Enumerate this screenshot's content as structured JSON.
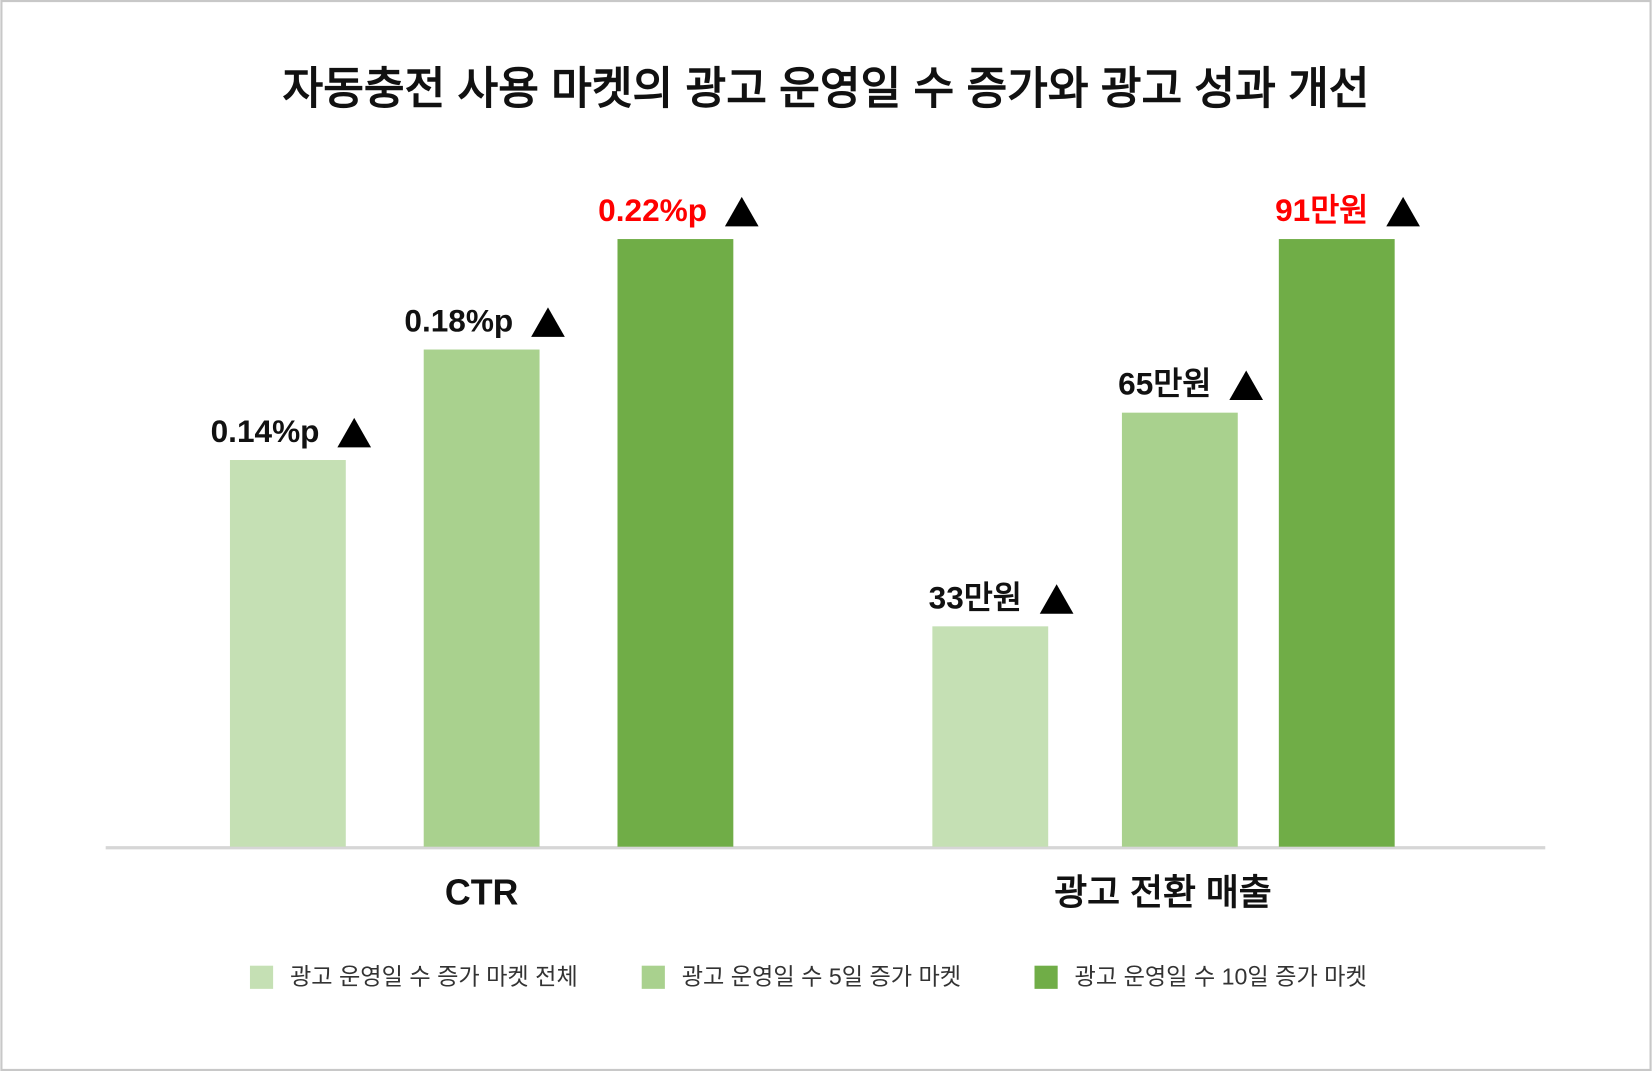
{
  "chart_data": {
    "type": "bar",
    "title": "자동충전 사용 마켓의 광고 운영일 수 증가와 광고 성과 개선",
    "categories": [
      "CTR",
      "광고 전환 매출"
    ],
    "series": [
      {
        "name": "광고 운영일 수 증가 마켓 전체",
        "color": "#c5e0b4",
        "label_color": "#111111",
        "values": [
          0.14,
          33
        ],
        "value_labels": [
          "0.14%p",
          "33만원"
        ]
      },
      {
        "name": "광고 운영일 수 5일 증가 마켓",
        "color": "#a9d18e",
        "label_color": "#111111",
        "values": [
          0.18,
          65
        ],
        "value_labels": [
          "0.18%p",
          "65만원"
        ]
      },
      {
        "name": "광고 운영일 수 10일 증가 마켓",
        "color": "#70ad47",
        "label_color": "#ff0000",
        "values": [
          0.22,
          91
        ],
        "value_labels": [
          "0.22%p",
          "91만원"
        ]
      }
    ],
    "legend": "bottom"
  }
}
